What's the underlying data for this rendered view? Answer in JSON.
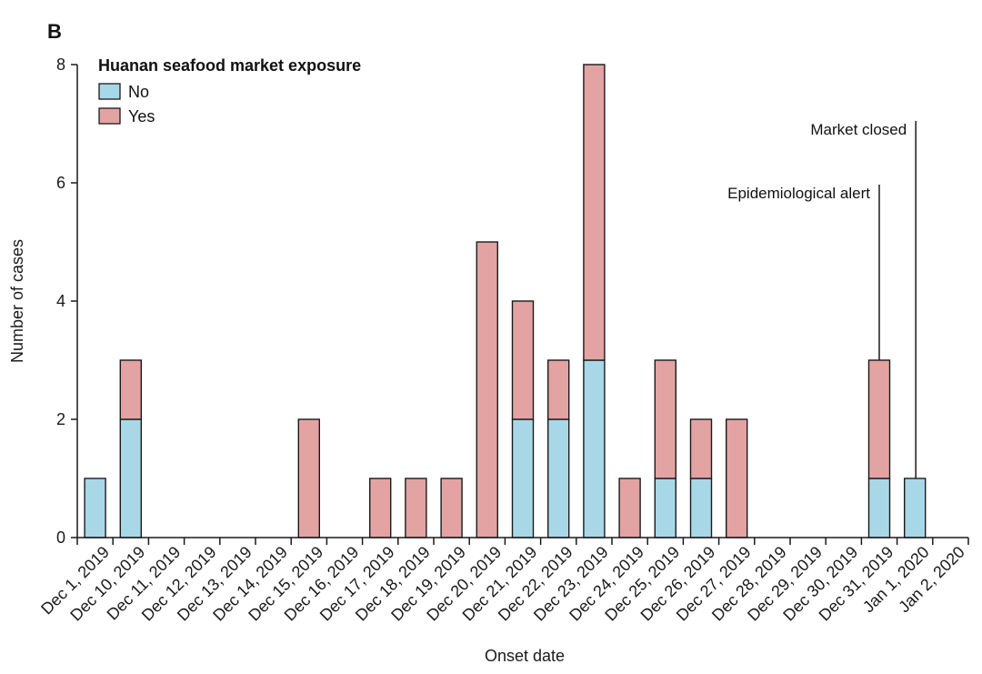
{
  "chart_data": {
    "type": "bar",
    "stacked": true,
    "panel_label": "B",
    "xlabel": "Onset date",
    "ylabel": "Number of cases",
    "ylim": [
      0,
      8
    ],
    "yticks": [
      0,
      2,
      4,
      6,
      8
    ],
    "categories": [
      "Dec 1, 2019",
      "Dec 10, 2019",
      "Dec 11, 2019",
      "Dec 12, 2019",
      "Dec 13, 2019",
      "Dec 14, 2019",
      "Dec 15, 2019",
      "Dec 16, 2019",
      "Dec 17, 2019",
      "Dec 18, 2019",
      "Dec 19, 2019",
      "Dec 20, 2019",
      "Dec 21, 2019",
      "Dec 22, 2019",
      "Dec 23, 2019",
      "Dec 24, 2019",
      "Dec 25, 2019",
      "Dec 26, 2019",
      "Dec 27, 2019",
      "Dec 28, 2019",
      "Dec 29, 2019",
      "Dec 30, 2019",
      "Dec 31, 2019",
      "Jan 1, 2020",
      "Jan 2, 2020"
    ],
    "legend_title": "Huanan seafood market exposure",
    "legend_position": "top-left",
    "series": [
      {
        "name": "No",
        "color": "#a8d8e8",
        "values": [
          1,
          2,
          0,
          0,
          0,
          0,
          0,
          0,
          0,
          0,
          0,
          0,
          2,
          2,
          3,
          0,
          1,
          1,
          0,
          0,
          0,
          0,
          1,
          1,
          0
        ]
      },
      {
        "name": "Yes",
        "color": "#e3a3a3",
        "values": [
          0,
          1,
          0,
          0,
          0,
          0,
          2,
          0,
          1,
          1,
          1,
          5,
          2,
          1,
          5,
          1,
          2,
          1,
          2,
          0,
          0,
          0,
          2,
          0,
          0
        ]
      }
    ],
    "annotations": [
      {
        "text": "Epidemiological alert",
        "category": "Dec 31, 2019"
      },
      {
        "text": "Market closed",
        "category": "Jan 1, 2020"
      }
    ],
    "grid": false
  }
}
